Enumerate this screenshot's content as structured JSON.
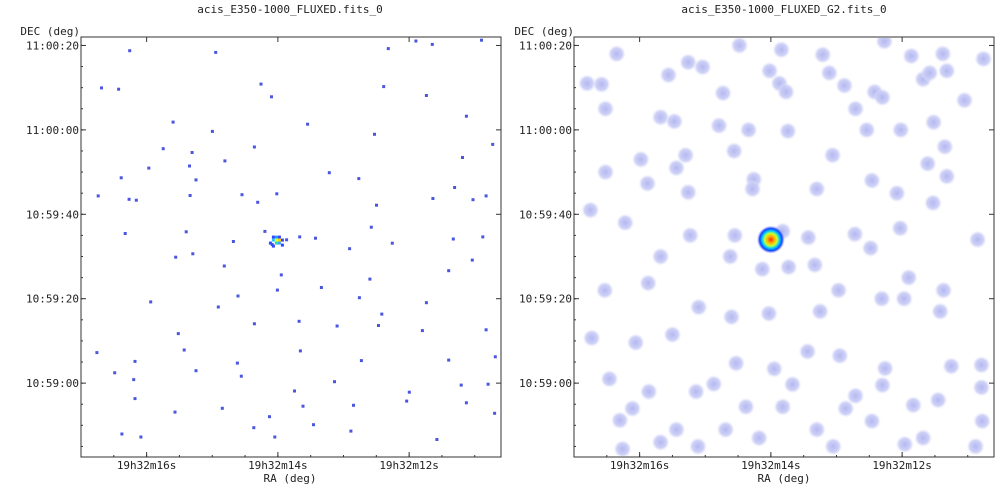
{
  "chart_data": [
    {
      "type": "scatter",
      "title": "acis_E350-1000_FLUXED.fits_0",
      "xlabel": "RA (deg)",
      "ylabel": "DEC (deg)",
      "x_ticks": [
        "19h32m16s",
        "19h32m14s",
        "19h32m12s"
      ],
      "y_ticks": [
        "11:00:20",
        "11:00:00",
        "10:59:40",
        "10:59:20",
        "10:59:00"
      ],
      "xlim_sec": [
        17.0,
        10.6
      ],
      "ylim_sec": [
        46.0,
        23.5
      ],
      "x_ticks_sec": [
        16.0,
        14.0,
        12.0
      ],
      "y_ticks_sec": [
        40.0,
        20.0,
        0.0,
        -20.0,
        -40.0
      ],
      "point_color": "#4a55e0",
      "source": {
        "x": 14.0,
        "y": -6.0
      },
      "points": [
        [
          15.84,
          41.9
        ],
        [
          14.87,
          42.8
        ],
        [
          13.86,
          42.5
        ],
        [
          12.47,
          42.8
        ],
        [
          11.92,
          41.4
        ],
        [
          16.28,
          39.1
        ],
        [
          14.97,
          38.7
        ],
        [
          12.34,
          39.6
        ],
        [
          11.67,
          40.6
        ],
        [
          10.92,
          41.6
        ],
        [
          16.71,
          30.3
        ],
        [
          16.45,
          30.0
        ],
        [
          14.28,
          31.2
        ],
        [
          14.12,
          28.2
        ],
        [
          12.41,
          30.6
        ],
        [
          11.76,
          28.5
        ],
        [
          15.62,
          22.2
        ],
        [
          15.02,
          20.0
        ],
        [
          13.57,
          21.7
        ],
        [
          11.15,
          23.6
        ],
        [
          15.77,
          15.9
        ],
        [
          15.33,
          15.0
        ],
        [
          15.37,
          11.8
        ],
        [
          14.83,
          13.0
        ],
        [
          14.38,
          16.3
        ],
        [
          12.55,
          19.3
        ],
        [
          11.21,
          13.8
        ],
        [
          10.75,
          16.9
        ],
        [
          16.41,
          9.0
        ],
        [
          15.99,
          11.3
        ],
        [
          15.27,
          8.5
        ],
        [
          14.57,
          5.0
        ],
        [
          14.04,
          5.2
        ],
        [
          12.79,
          8.8
        ],
        [
          11.33,
          6.7
        ],
        [
          11.05,
          3.8
        ],
        [
          16.76,
          4.7
        ],
        [
          16.29,
          3.9
        ],
        [
          16.18,
          3.7
        ],
        [
          15.36,
          4.8
        ],
        [
          14.33,
          3.2
        ],
        [
          12.52,
          2.5
        ],
        [
          11.66,
          4.1
        ],
        [
          10.85,
          4.7
        ],
        [
          16.35,
          -4.2
        ],
        [
          15.42,
          -3.8
        ],
        [
          14.7,
          -6.1
        ],
        [
          14.22,
          -3.7
        ],
        [
          13.69,
          -5.0
        ],
        [
          13.45,
          -5.3
        ],
        [
          12.93,
          -7.8
        ],
        [
          12.28,
          -6.5
        ],
        [
          11.35,
          -5.5
        ],
        [
          10.9,
          -5.0
        ],
        [
          15.58,
          -9.8
        ],
        [
          14.84,
          -11.9
        ],
        [
          13.97,
          -14.0
        ],
        [
          13.36,
          -17.0
        ],
        [
          12.62,
          -15.0
        ],
        [
          11.42,
          -13.0
        ],
        [
          11.06,
          -10.5
        ],
        [
          15.96,
          -20.4
        ],
        [
          14.93,
          -21.6
        ],
        [
          14.63,
          -19.0
        ],
        [
          14.03,
          -17.6
        ],
        [
          12.78,
          -19.4
        ],
        [
          12.44,
          -23.3
        ],
        [
          11.76,
          -20.6
        ],
        [
          15.54,
          -27.9
        ],
        [
          14.38,
          -25.6
        ],
        [
          13.7,
          -25.0
        ],
        [
          13.12,
          -26.1
        ],
        [
          12.49,
          -26.0
        ],
        [
          11.82,
          -27.2
        ],
        [
          10.85,
          -27.0
        ],
        [
          16.78,
          -32.4
        ],
        [
          16.2,
          -34.5
        ],
        [
          15.45,
          -31.8
        ],
        [
          14.64,
          -34.9
        ],
        [
          13.68,
          -32.0
        ],
        [
          12.75,
          -34.3
        ],
        [
          11.42,
          -34.2
        ],
        [
          10.71,
          -33.4
        ],
        [
          16.51,
          -37.2
        ],
        [
          16.22,
          -38.8
        ],
        [
          15.27,
          -36.7
        ],
        [
          14.58,
          -38.0
        ],
        [
          13.77,
          -41.5
        ],
        [
          13.16,
          -39.3
        ],
        [
          12.02,
          -41.8
        ],
        [
          11.23,
          -40.1
        ],
        [
          10.82,
          -39.9
        ],
        [
          16.2,
          -43.3
        ],
        [
          15.59,
          -46.5
        ],
        [
          14.87,
          -45.6
        ],
        [
          14.15,
          -47.6
        ],
        [
          13.64,
          -45.1
        ],
        [
          12.87,
          -44.9
        ],
        [
          12.06,
          -43.9
        ],
        [
          11.15,
          -44.3
        ],
        [
          10.72,
          -46.8
        ],
        [
          16.4,
          -51.7
        ],
        [
          16.11,
          -52.4
        ],
        [
          14.39,
          -50.2
        ],
        [
          14.07,
          -52.4
        ],
        [
          13.48,
          -49.5
        ],
        [
          12.91,
          -51.0
        ],
        [
          11.6,
          -53.0
        ],
        [
          10.64,
          -53.3
        ],
        [
          15.32,
          -9.0
        ],
        [
          14.11,
          -6.8
        ],
        [
          13.89,
          -5.7
        ],
        [
          12.6,
          -2.7
        ],
        [
          13.24,
          10.2
        ]
      ]
    },
    {
      "type": "scatter",
      "title": "acis_E350-1000_FLUXED_G2.fits_0",
      "xlabel": "RA (deg)",
      "ylabel": "DEC (deg)",
      "x_ticks": [
        "19h32m16s",
        "19h32m14s",
        "19h32m12s"
      ],
      "y_ticks": [
        "11:00:20",
        "11:00:00",
        "10:59:40",
        "10:59:20",
        "10:59:00"
      ],
      "xlim_sec": [
        17.0,
        10.6
      ],
      "ylim_sec": [
        46.0,
        23.5
      ],
      "x_ticks_sec": [
        16.0,
        14.0,
        12.0
      ],
      "y_ticks_sec": [
        40.0,
        20.0,
        0.0,
        -20.0,
        -40.0
      ],
      "blob_color": "#c8ccf4",
      "source": {
        "x": 14.0,
        "y": -6.0
      },
      "blobs": [
        [
          16.35,
          38.0
        ],
        [
          15.26,
          36.0
        ],
        [
          14.48,
          40.0
        ],
        [
          13.84,
          39.0
        ],
        [
          13.21,
          37.8
        ],
        [
          12.27,
          41.0
        ],
        [
          11.86,
          37.5
        ],
        [
          11.38,
          38.0
        ],
        [
          10.76,
          36.8
        ],
        [
          16.8,
          31.0
        ],
        [
          16.58,
          30.8
        ],
        [
          15.56,
          33.0
        ],
        [
          14.73,
          28.7
        ],
        [
          13.87,
          31.0
        ],
        [
          13.77,
          29.0
        ],
        [
          12.88,
          30.5
        ],
        [
          12.42,
          29.0
        ],
        [
          11.68,
          32.0
        ],
        [
          11.58,
          33.5
        ],
        [
          11.32,
          34.0
        ],
        [
          15.68,
          23.0
        ],
        [
          15.47,
          22.0
        ],
        [
          14.79,
          21.0
        ],
        [
          14.34,
          20.0
        ],
        [
          13.74,
          19.7
        ],
        [
          12.54,
          20.0
        ],
        [
          12.02,
          20.0
        ],
        [
          11.52,
          21.8
        ],
        [
          11.35,
          16.0
        ],
        [
          15.98,
          13.0
        ],
        [
          15.3,
          14.0
        ],
        [
          15.44,
          11.0
        ],
        [
          14.56,
          15.0
        ],
        [
          14.26,
          8.3
        ],
        [
          13.06,
          14.0
        ],
        [
          12.46,
          8.0
        ],
        [
          11.61,
          12.0
        ],
        [
          11.32,
          9.0
        ],
        [
          16.52,
          10.0
        ],
        [
          15.88,
          7.3
        ],
        [
          15.26,
          5.2
        ],
        [
          14.28,
          6.0
        ],
        [
          13.3,
          6.0
        ],
        [
          12.08,
          5.0
        ],
        [
          11.53,
          2.7
        ],
        [
          16.75,
          1.0
        ],
        [
          16.22,
          -2.0
        ],
        [
          15.23,
          -5.0
        ],
        [
          14.55,
          -5.0
        ],
        [
          13.82,
          -4.0
        ],
        [
          13.43,
          -5.5
        ],
        [
          12.72,
          -4.7
        ],
        [
          12.03,
          -3.3
        ],
        [
          10.85,
          -6.0
        ],
        [
          15.68,
          -10.0
        ],
        [
          14.62,
          -10.0
        ],
        [
          14.13,
          -13.0
        ],
        [
          13.73,
          -12.5
        ],
        [
          13.33,
          -12.0
        ],
        [
          12.48,
          -8.0
        ],
        [
          11.9,
          -15.0
        ],
        [
          11.37,
          -18.0
        ],
        [
          16.53,
          -18.0
        ],
        [
          15.87,
          -16.3
        ],
        [
          15.1,
          -22.0
        ],
        [
          14.6,
          -24.3
        ],
        [
          14.03,
          -23.5
        ],
        [
          13.25,
          -23.0
        ],
        [
          12.97,
          -18.0
        ],
        [
          12.31,
          -20.0
        ],
        [
          11.97,
          -20.0
        ],
        [
          11.42,
          -23.0
        ],
        [
          16.73,
          -29.3
        ],
        [
          16.06,
          -30.4
        ],
        [
          15.5,
          -28.5
        ],
        [
          14.53,
          -35.3
        ],
        [
          13.95,
          -36.6
        ],
        [
          13.44,
          -32.5
        ],
        [
          12.95,
          -33.5
        ],
        [
          12.26,
          -36.5
        ],
        [
          11.25,
          -36.0
        ],
        [
          10.79,
          -35.7
        ],
        [
          16.46,
          -39.0
        ],
        [
          15.86,
          -42.0
        ],
        [
          15.14,
          -42.0
        ],
        [
          14.38,
          -45.6
        ],
        [
          13.82,
          -45.6
        ],
        [
          12.71,
          -43.0
        ],
        [
          12.3,
          -40.5
        ],
        [
          11.45,
          -44.0
        ],
        [
          10.79,
          -41.0
        ],
        [
          16.11,
          -46.0
        ],
        [
          15.44,
          -51.0
        ],
        [
          14.69,
          -51.0
        ],
        [
          14.18,
          -53.0
        ],
        [
          13.3,
          -51.0
        ],
        [
          12.46,
          -49.0
        ],
        [
          11.68,
          -53.0
        ],
        [
          10.78,
          -49.0
        ],
        [
          16.26,
          -55.6
        ],
        [
          15.68,
          -54.0
        ],
        [
          15.11,
          -55.0
        ],
        [
          13.05,
          -55.0
        ],
        [
          11.96,
          -54.5
        ],
        [
          10.88,
          -55.0
        ],
        [
          16.3,
          -48.8
        ],
        [
          14.87,
          -40.2
        ],
        [
          13.67,
          -40.3
        ],
        [
          12.86,
          -46.0
        ],
        [
          11.83,
          -45.2
        ],
        [
          12.71,
          25.0
        ],
        [
          12.3,
          27.7
        ],
        [
          13.11,
          33.5
        ],
        [
          14.02,
          34.0
        ],
        [
          15.04,
          34.9
        ],
        [
          16.52,
          25.0
        ],
        [
          11.05,
          27.0
        ]
      ]
    }
  ]
}
